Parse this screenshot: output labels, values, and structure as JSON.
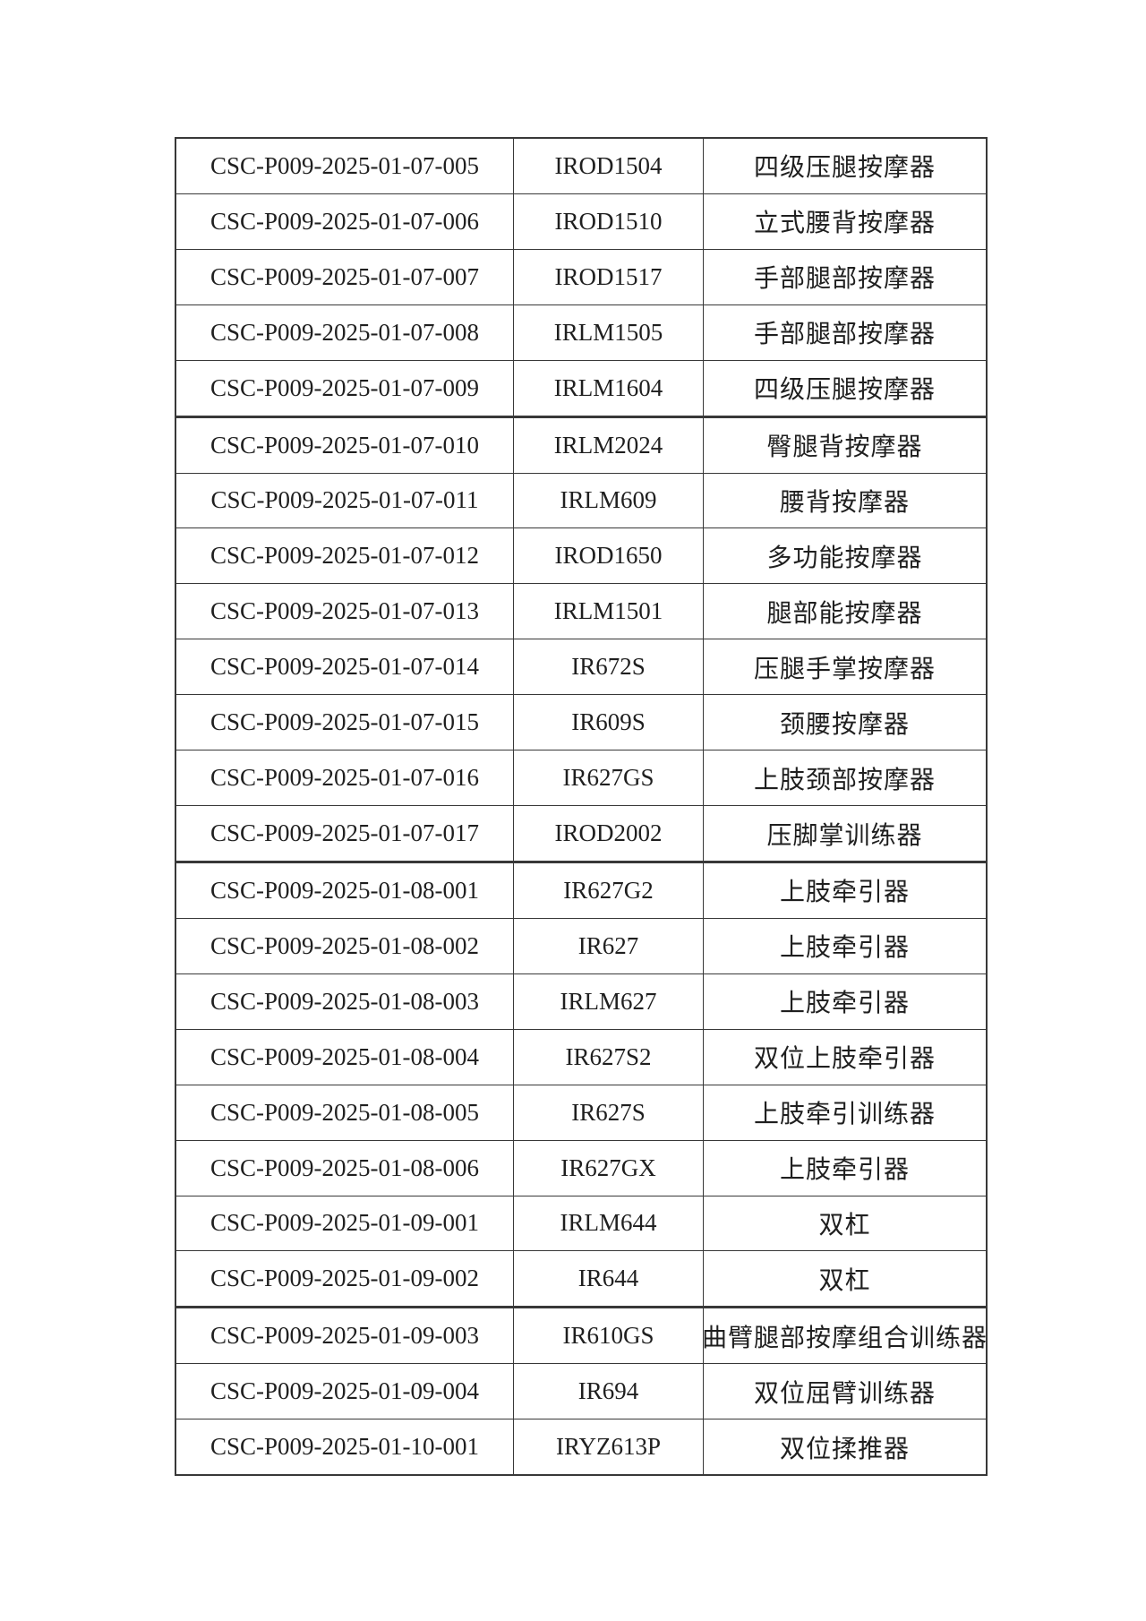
{
  "colors": {
    "border": "#383838",
    "text": "#1f1f1f",
    "page_background": "#ffffff"
  },
  "table": {
    "thick_border_after_rows": [
      5,
      13,
      21
    ],
    "rows": [
      {
        "code": "CSC-P009-2025-01-07-005",
        "model": "IROD1504",
        "name": "四级压腿按摩器"
      },
      {
        "code": "CSC-P009-2025-01-07-006",
        "model": "IROD1510",
        "name": "立式腰背按摩器"
      },
      {
        "code": "CSC-P009-2025-01-07-007",
        "model": "IROD1517",
        "name": "手部腿部按摩器"
      },
      {
        "code": "CSC-P009-2025-01-07-008",
        "model": "IRLM1505",
        "name": "手部腿部按摩器"
      },
      {
        "code": "CSC-P009-2025-01-07-009",
        "model": "IRLM1604",
        "name": "四级压腿按摩器"
      },
      {
        "code": "CSC-P009-2025-01-07-010",
        "model": "IRLM2024",
        "name": "臀腿背按摩器"
      },
      {
        "code": "CSC-P009-2025-01-07-011",
        "model": "IRLM609",
        "name": "腰背按摩器"
      },
      {
        "code": "CSC-P009-2025-01-07-012",
        "model": "IROD1650",
        "name": "多功能按摩器"
      },
      {
        "code": "CSC-P009-2025-01-07-013",
        "model": "IRLM1501",
        "name": "腿部能按摩器"
      },
      {
        "code": "CSC-P009-2025-01-07-014",
        "model": "IR672S",
        "name": "压腿手掌按摩器"
      },
      {
        "code": "CSC-P009-2025-01-07-015",
        "model": "IR609S",
        "name": "颈腰按摩器"
      },
      {
        "code": "CSC-P009-2025-01-07-016",
        "model": "IR627GS",
        "name": "上肢颈部按摩器"
      },
      {
        "code": "CSC-P009-2025-01-07-017",
        "model": "IROD2002",
        "name": "压脚掌训练器"
      },
      {
        "code": "CSC-P009-2025-01-08-001",
        "model": "IR627G2",
        "name": "上肢牵引器"
      },
      {
        "code": "CSC-P009-2025-01-08-002",
        "model": "IR627",
        "name": "上肢牵引器"
      },
      {
        "code": "CSC-P009-2025-01-08-003",
        "model": "IRLM627",
        "name": "上肢牵引器"
      },
      {
        "code": "CSC-P009-2025-01-08-004",
        "model": "IR627S2",
        "name": "双位上肢牵引器"
      },
      {
        "code": "CSC-P009-2025-01-08-005",
        "model": "IR627S",
        "name": "上肢牵引训练器"
      },
      {
        "code": "CSC-P009-2025-01-08-006",
        "model": "IR627GX",
        "name": "上肢牵引器"
      },
      {
        "code": "CSC-P009-2025-01-09-001",
        "model": "IRLM644",
        "name": "双杠"
      },
      {
        "code": "CSC-P009-2025-01-09-002",
        "model": "IR644",
        "name": "双杠"
      },
      {
        "code": "CSC-P009-2025-01-09-003",
        "model": "IR610GS",
        "name": "曲臂腿部按摩组合训练器"
      },
      {
        "code": "CSC-P009-2025-01-09-004",
        "model": "IR694",
        "name": "双位屈臂训练器"
      },
      {
        "code": "CSC-P009-2025-01-10-001",
        "model": "IRYZ613P",
        "name": "双位揉推器"
      }
    ]
  }
}
